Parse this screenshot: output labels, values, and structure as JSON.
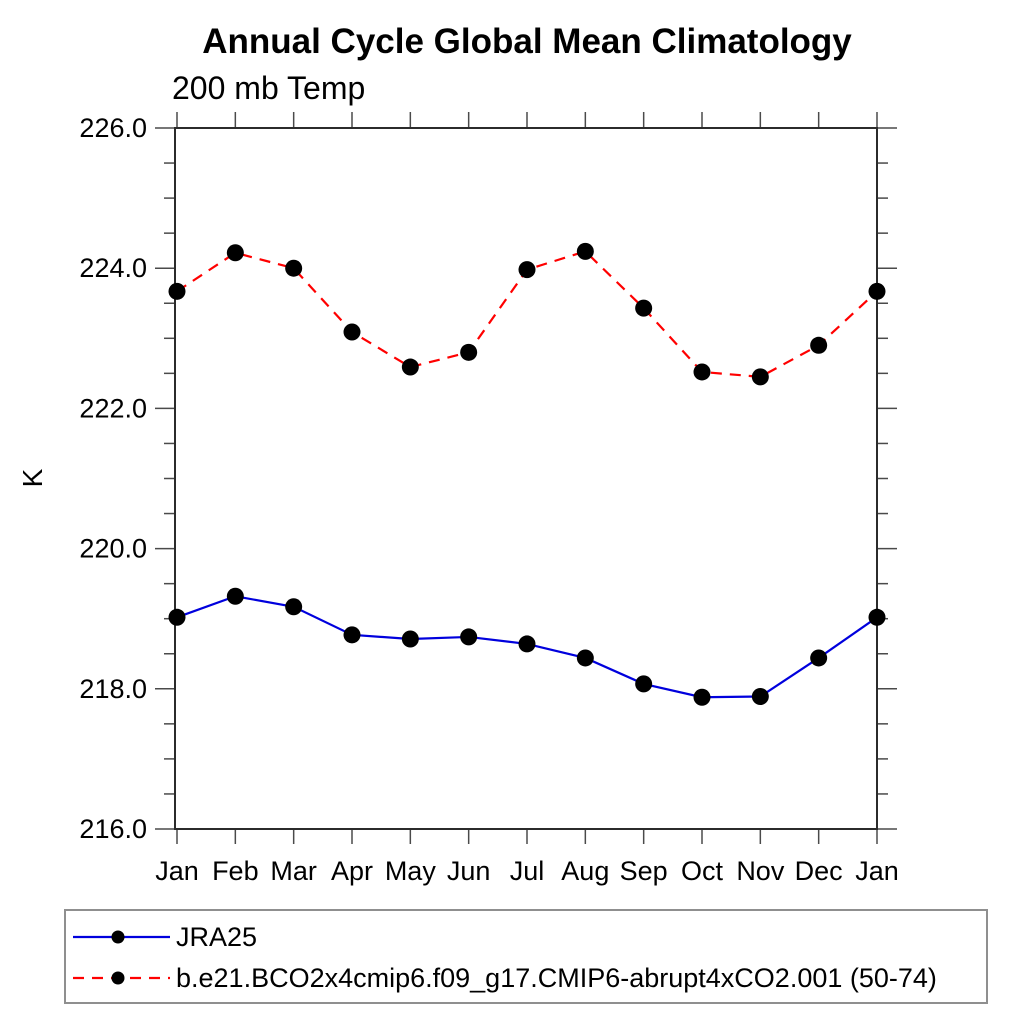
{
  "page": {
    "background_color": "#ffffff",
    "frame_color": "#2b2b2b",
    "tick_color": "#4a4a4a",
    "legend_border_color": "#8f8f8f"
  },
  "chart_data": {
    "type": "line",
    "title": "Annual Cycle Global Mean Climatology",
    "subtitle": "200 mb Temp",
    "xlabel": "",
    "ylabel": "K",
    "x_tick_labels": [
      "Jan",
      "Feb",
      "Mar",
      "Apr",
      "May",
      "Jun",
      "Jul",
      "Aug",
      "Sep",
      "Oct",
      "Nov",
      "Dec",
      "Jan"
    ],
    "ylim": [
      216.0,
      226.0
    ],
    "y_major_ticks": [
      226.0,
      224.0,
      222.0,
      220.0,
      218.0,
      216.0
    ],
    "y_tick_labels": [
      "226.0",
      "224.0",
      "222.0",
      "220.0",
      "218.0",
      "216.0"
    ],
    "y_minor_step": 0.5,
    "grid": false,
    "tick_direction": "outward",
    "legend_position": "bottom-left",
    "series": [
      {
        "name": "JRA25",
        "color": "#0000dd",
        "line_style": "solid",
        "marker": "circle",
        "marker_color": "#000000",
        "values": [
          219.02,
          219.32,
          219.17,
          218.77,
          218.71,
          218.74,
          218.64,
          218.44,
          218.07,
          217.88,
          217.89,
          218.44,
          219.02
        ]
      },
      {
        "name": "b.e21.BCO2x4cmip6.f09_g17.CMIP6-abrupt4xCO2.001 (50-74)",
        "color": "#ff0000",
        "line_style": "dashed",
        "marker": "circle",
        "marker_color": "#000000",
        "values": [
          223.67,
          224.22,
          224.0,
          223.09,
          222.59,
          222.8,
          223.98,
          224.24,
          223.43,
          222.52,
          222.45,
          222.9,
          223.67
        ]
      }
    ]
  }
}
